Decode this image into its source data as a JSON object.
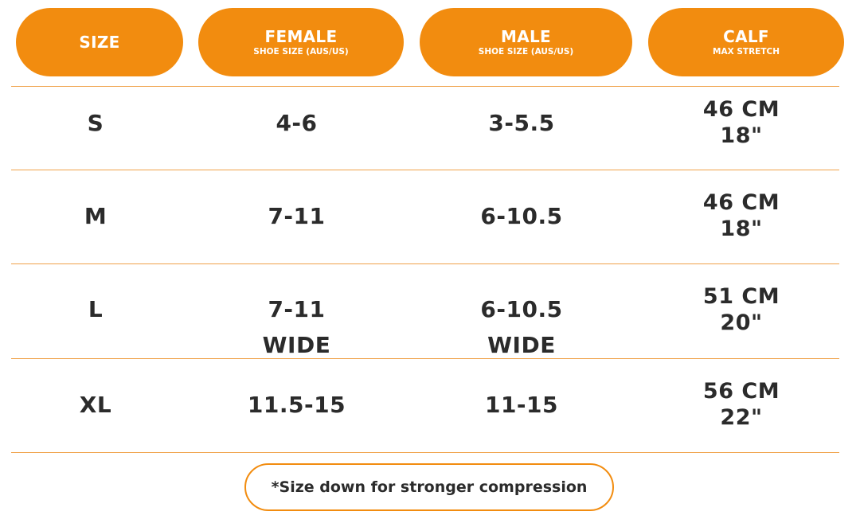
{
  "colors": {
    "accent": "#f28c0f",
    "divider": "#f0a24a",
    "text": "#2b2b2b",
    "header_text": "#ffffff"
  },
  "headers": {
    "size": "SIZE",
    "female": {
      "title": "FEMALE",
      "subtitle": "SHOE SIZE (AUS/US)"
    },
    "male": {
      "title": "MALE",
      "subtitle": "SHOE SIZE (AUS/US)"
    },
    "calf": {
      "title": "CALF",
      "subtitle": "MAX STRETCH"
    }
  },
  "rows": [
    {
      "size": "S",
      "female": "4-6",
      "female_note": "",
      "male": "3-5.5",
      "male_note": "",
      "calf_cm": "46 CM",
      "calf_in": "18\""
    },
    {
      "size": "M",
      "female": "7-11",
      "female_note": "",
      "male": "6-10.5",
      "male_note": "",
      "calf_cm": "46 CM",
      "calf_in": "18\""
    },
    {
      "size": "L",
      "female": "7-11",
      "female_note": "WIDE",
      "male": "6-10.5",
      "male_note": "WIDE",
      "calf_cm": "51 CM",
      "calf_in": "20\""
    },
    {
      "size": "XL",
      "female": "11.5-15",
      "female_note": "",
      "male": "11-15",
      "male_note": "",
      "calf_cm": "56 CM",
      "calf_in": "22\""
    }
  ],
  "note": "*Size down for stronger compression"
}
